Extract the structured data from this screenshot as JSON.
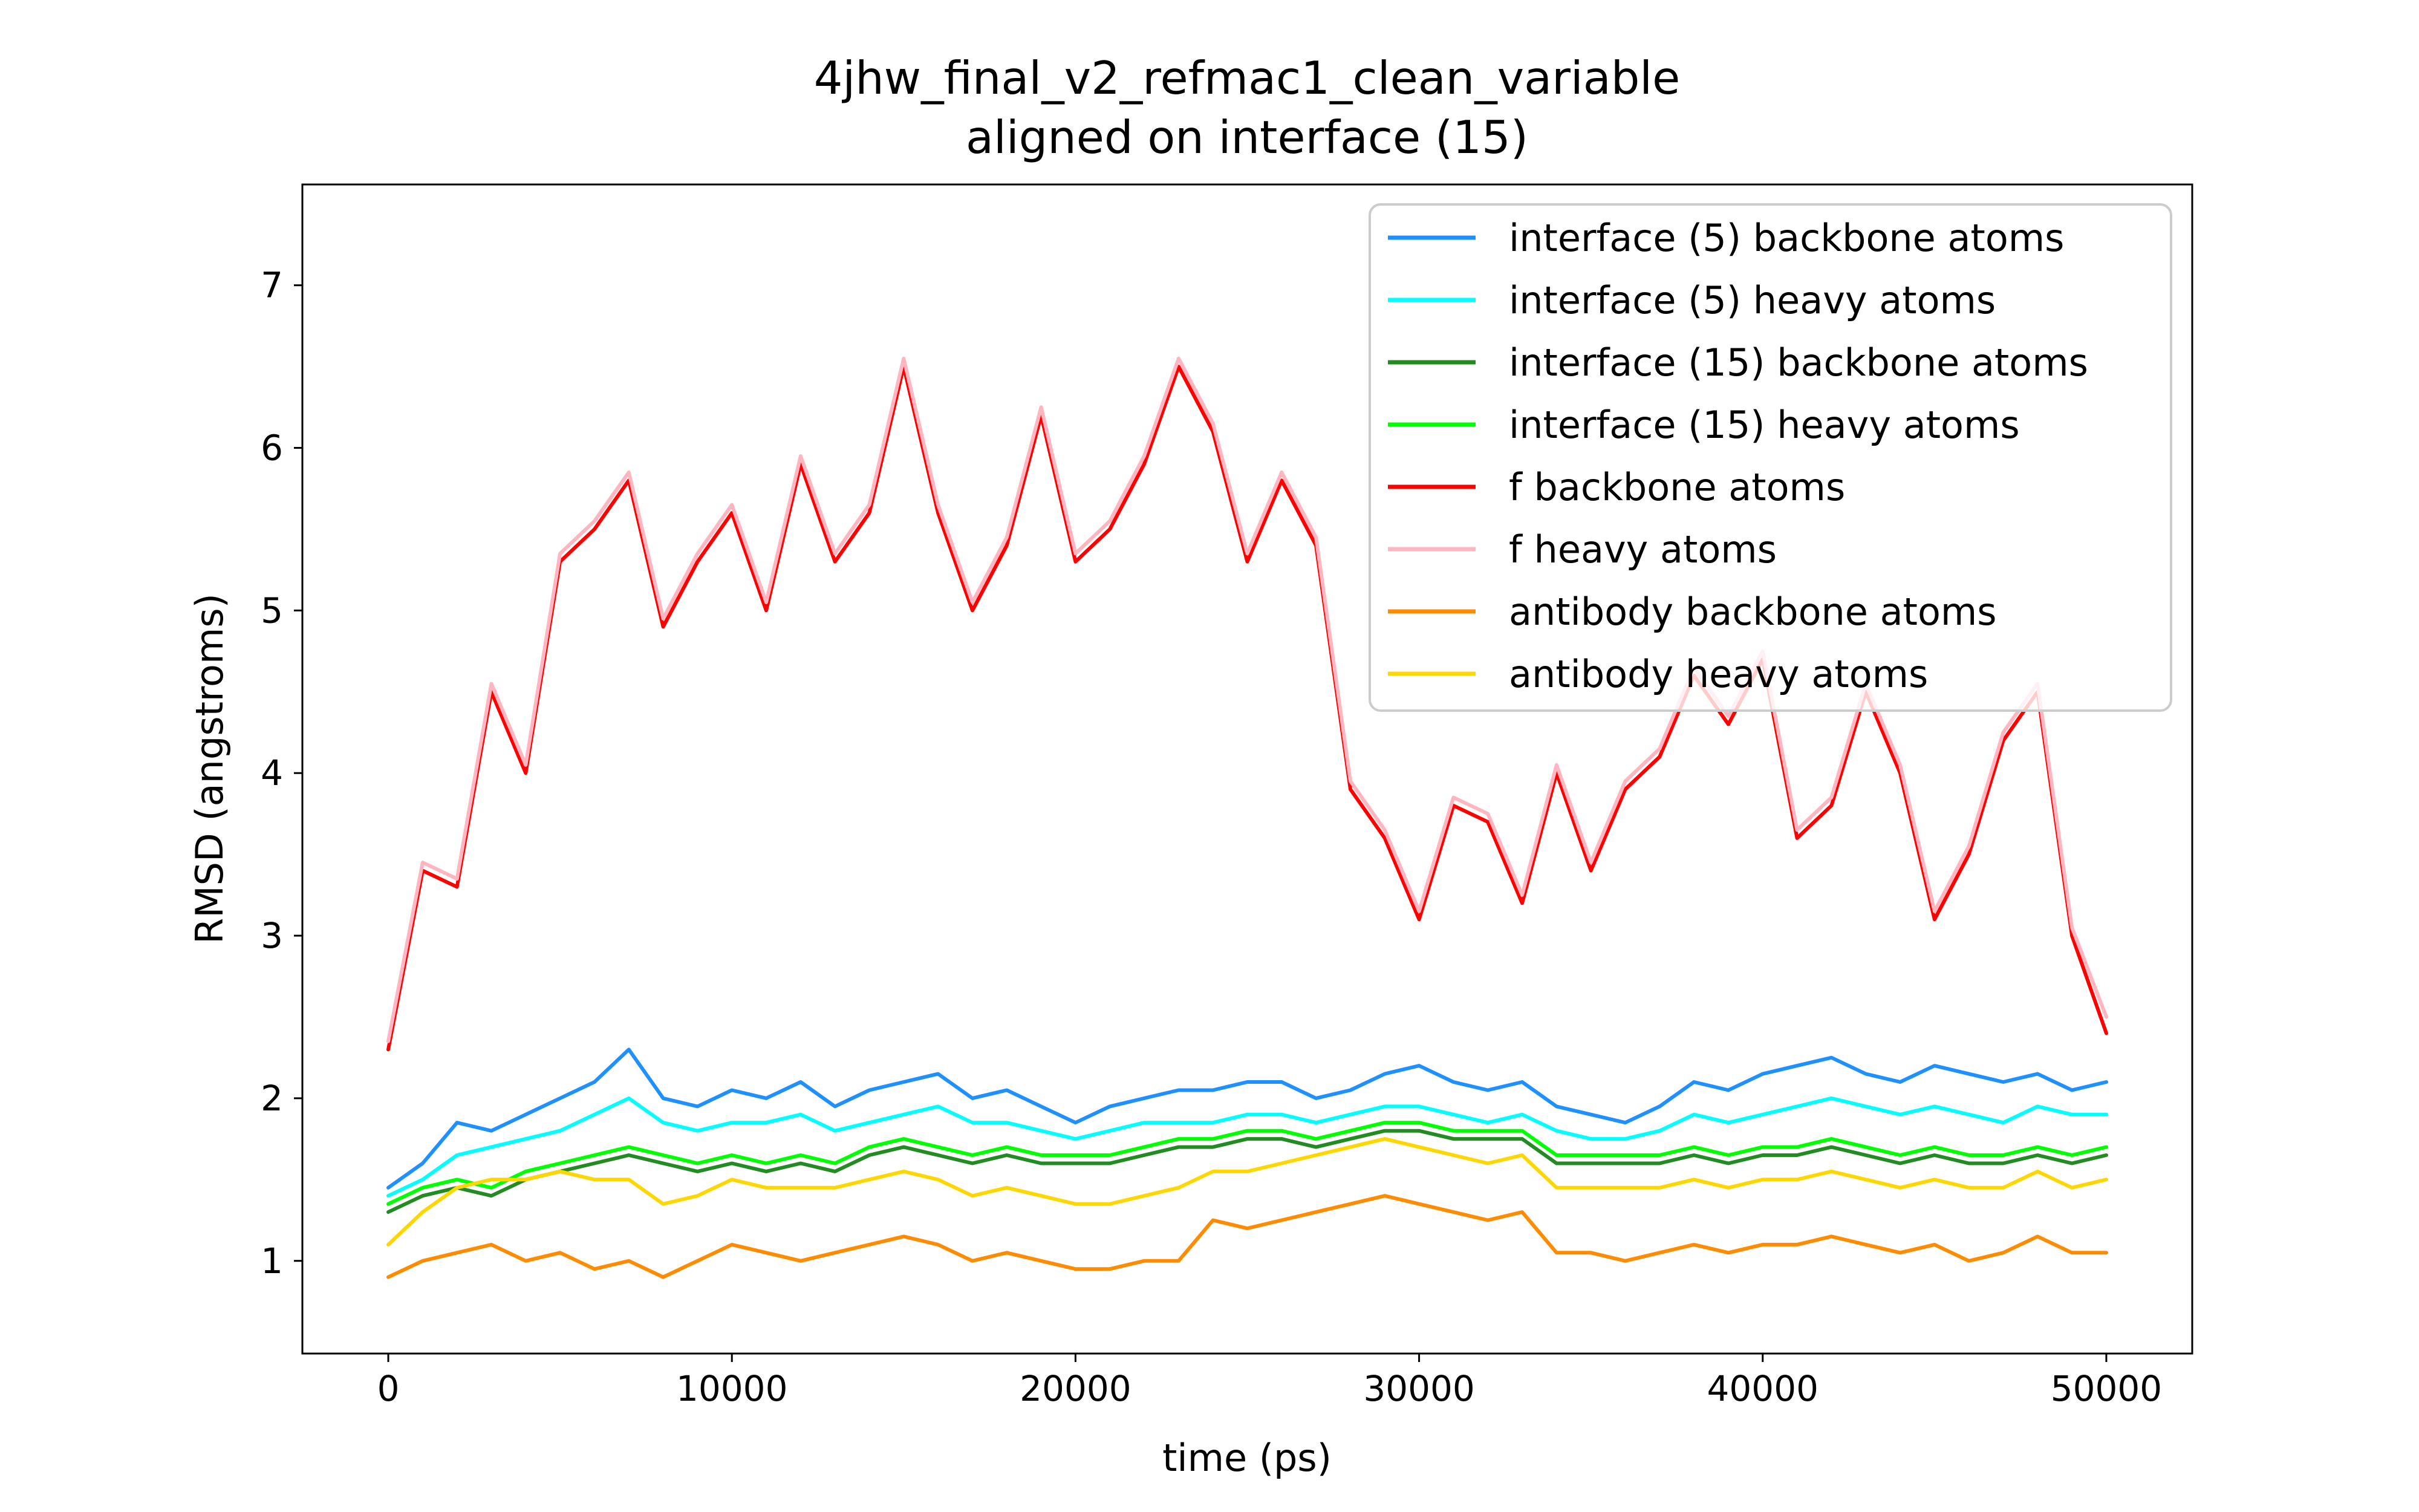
{
  "chart_data": {
    "type": "line",
    "title": "4jhw_final_v2_refmac1_clean_variable",
    "subtitle": "aligned on interface (15)",
    "xlabel": "time (ps)",
    "ylabel": "RMSD (angstroms)",
    "xlim": [
      -2500,
      52500
    ],
    "ylim": [
      0.43,
      7.62
    ],
    "xticks": [
      0,
      10000,
      20000,
      30000,
      40000,
      50000
    ],
    "xtick_labels": [
      "0",
      "10000",
      "20000",
      "30000",
      "40000",
      "50000"
    ],
    "yticks": [
      1,
      2,
      3,
      4,
      5,
      6,
      7
    ],
    "ytick_labels": [
      "1",
      "2",
      "3",
      "4",
      "5",
      "6",
      "7"
    ],
    "grid": false,
    "legend_position": "top-right",
    "series": [
      {
        "name": "interface (5) backbone atoms",
        "color": "#1e90ff",
        "x": [
          0,
          1000,
          2000,
          3000,
          4000,
          5000,
          6000,
          7000,
          8000,
          9000,
          10000,
          11000,
          12000,
          13000,
          14000,
          15000,
          16000,
          17000,
          18000,
          19000,
          20000,
          21000,
          22000,
          23000,
          24000,
          25000,
          26000,
          27000,
          28000,
          29000,
          30000,
          31000,
          32000,
          33000,
          34000,
          35000,
          36000,
          37000,
          38000,
          39000,
          40000,
          41000,
          42000,
          43000,
          44000,
          45000,
          46000,
          47000,
          48000,
          49000,
          50000
        ],
        "y": [
          1.45,
          1.6,
          1.85,
          1.8,
          1.9,
          2.0,
          2.1,
          2.3,
          2.0,
          1.95,
          2.05,
          2.0,
          2.1,
          1.95,
          2.05,
          2.1,
          2.15,
          2.0,
          2.05,
          1.95,
          1.85,
          1.95,
          2.0,
          2.05,
          2.05,
          2.1,
          2.1,
          2.0,
          2.05,
          2.15,
          2.2,
          2.1,
          2.05,
          2.1,
          1.95,
          1.9,
          1.85,
          1.95,
          2.1,
          2.05,
          2.15,
          2.2,
          2.25,
          2.15,
          2.1,
          2.2,
          2.15,
          2.1,
          2.15,
          2.05,
          2.1
        ]
      },
      {
        "name": "interface (5) heavy atoms",
        "color": "#00ffff",
        "x": [
          0,
          1000,
          2000,
          3000,
          4000,
          5000,
          6000,
          7000,
          8000,
          9000,
          10000,
          11000,
          12000,
          13000,
          14000,
          15000,
          16000,
          17000,
          18000,
          19000,
          20000,
          21000,
          22000,
          23000,
          24000,
          25000,
          26000,
          27000,
          28000,
          29000,
          30000,
          31000,
          32000,
          33000,
          34000,
          35000,
          36000,
          37000,
          38000,
          39000,
          40000,
          41000,
          42000,
          43000,
          44000,
          45000,
          46000,
          47000,
          48000,
          49000,
          50000
        ],
        "y": [
          1.4,
          1.5,
          1.65,
          1.7,
          1.75,
          1.8,
          1.9,
          2.0,
          1.85,
          1.8,
          1.85,
          1.85,
          1.9,
          1.8,
          1.85,
          1.9,
          1.95,
          1.85,
          1.85,
          1.8,
          1.75,
          1.8,
          1.85,
          1.85,
          1.85,
          1.9,
          1.9,
          1.85,
          1.9,
          1.95,
          1.95,
          1.9,
          1.85,
          1.9,
          1.8,
          1.75,
          1.75,
          1.8,
          1.9,
          1.85,
          1.9,
          1.95,
          2.0,
          1.95,
          1.9,
          1.95,
          1.9,
          1.85,
          1.95,
          1.9,
          1.9
        ]
      },
      {
        "name": "interface (15) backbone atoms",
        "color": "#228b22",
        "x": [
          0,
          1000,
          2000,
          3000,
          4000,
          5000,
          6000,
          7000,
          8000,
          9000,
          10000,
          11000,
          12000,
          13000,
          14000,
          15000,
          16000,
          17000,
          18000,
          19000,
          20000,
          21000,
          22000,
          23000,
          24000,
          25000,
          26000,
          27000,
          28000,
          29000,
          30000,
          31000,
          32000,
          33000,
          34000,
          35000,
          36000,
          37000,
          38000,
          39000,
          40000,
          41000,
          42000,
          43000,
          44000,
          45000,
          46000,
          47000,
          48000,
          49000,
          50000
        ],
        "y": [
          1.3,
          1.4,
          1.45,
          1.4,
          1.5,
          1.55,
          1.6,
          1.65,
          1.6,
          1.55,
          1.6,
          1.55,
          1.6,
          1.55,
          1.65,
          1.7,
          1.65,
          1.6,
          1.65,
          1.6,
          1.6,
          1.6,
          1.65,
          1.7,
          1.7,
          1.75,
          1.75,
          1.7,
          1.75,
          1.8,
          1.8,
          1.75,
          1.75,
          1.75,
          1.6,
          1.6,
          1.6,
          1.6,
          1.65,
          1.6,
          1.65,
          1.65,
          1.7,
          1.65,
          1.6,
          1.65,
          1.6,
          1.6,
          1.65,
          1.6,
          1.65
        ]
      },
      {
        "name": "interface (15) heavy atoms",
        "color": "#00ff00",
        "x": [
          0,
          1000,
          2000,
          3000,
          4000,
          5000,
          6000,
          7000,
          8000,
          9000,
          10000,
          11000,
          12000,
          13000,
          14000,
          15000,
          16000,
          17000,
          18000,
          19000,
          20000,
          21000,
          22000,
          23000,
          24000,
          25000,
          26000,
          27000,
          28000,
          29000,
          30000,
          31000,
          32000,
          33000,
          34000,
          35000,
          36000,
          37000,
          38000,
          39000,
          40000,
          41000,
          42000,
          43000,
          44000,
          45000,
          46000,
          47000,
          48000,
          49000,
          50000
        ],
        "y": [
          1.35,
          1.45,
          1.5,
          1.45,
          1.55,
          1.6,
          1.65,
          1.7,
          1.65,
          1.6,
          1.65,
          1.6,
          1.65,
          1.6,
          1.7,
          1.75,
          1.7,
          1.65,
          1.7,
          1.65,
          1.65,
          1.65,
          1.7,
          1.75,
          1.75,
          1.8,
          1.8,
          1.75,
          1.8,
          1.85,
          1.85,
          1.8,
          1.8,
          1.8,
          1.65,
          1.65,
          1.65,
          1.65,
          1.7,
          1.65,
          1.7,
          1.7,
          1.75,
          1.7,
          1.65,
          1.7,
          1.65,
          1.65,
          1.7,
          1.65,
          1.7
        ]
      },
      {
        "name": "f backbone atoms",
        "color": "#ff0000",
        "x": [
          0,
          1000,
          2000,
          3000,
          4000,
          5000,
          6000,
          7000,
          8000,
          9000,
          10000,
          11000,
          12000,
          13000,
          14000,
          15000,
          16000,
          17000,
          18000,
          19000,
          20000,
          21000,
          22000,
          23000,
          24000,
          25000,
          26000,
          27000,
          28000,
          29000,
          30000,
          31000,
          32000,
          33000,
          34000,
          35000,
          36000,
          37000,
          38000,
          39000,
          40000,
          41000,
          42000,
          43000,
          44000,
          45000,
          46000,
          47000,
          48000,
          49000,
          50000
        ],
        "y": [
          2.3,
          3.4,
          3.3,
          4.5,
          4.0,
          5.3,
          5.5,
          5.8,
          4.9,
          5.3,
          5.6,
          5.0,
          5.9,
          5.3,
          5.6,
          6.5,
          5.6,
          5.0,
          5.4,
          6.2,
          5.3,
          5.5,
          5.9,
          6.5,
          6.1,
          5.3,
          5.8,
          5.4,
          3.9,
          3.6,
          3.1,
          3.8,
          3.7,
          3.2,
          4.0,
          3.4,
          3.9,
          4.1,
          4.6,
          4.3,
          4.7,
          3.6,
          3.8,
          4.5,
          4.0,
          3.1,
          3.5,
          4.2,
          4.5,
          3.0,
          2.4
        ]
      },
      {
        "name": "f heavy atoms",
        "color": "#ffb6c1",
        "x": [
          0,
          1000,
          2000,
          3000,
          4000,
          5000,
          6000,
          7000,
          8000,
          9000,
          10000,
          11000,
          12000,
          13000,
          14000,
          15000,
          16000,
          17000,
          18000,
          19000,
          20000,
          21000,
          22000,
          23000,
          24000,
          25000,
          26000,
          27000,
          28000,
          29000,
          30000,
          31000,
          32000,
          33000,
          34000,
          35000,
          36000,
          37000,
          38000,
          39000,
          40000,
          41000,
          42000,
          43000,
          44000,
          45000,
          46000,
          47000,
          48000,
          49000,
          50000
        ],
        "y": [
          2.35,
          3.45,
          3.35,
          4.55,
          4.05,
          5.35,
          5.55,
          5.85,
          4.95,
          5.35,
          5.65,
          5.05,
          5.95,
          5.35,
          5.65,
          6.55,
          5.65,
          5.05,
          5.45,
          6.25,
          5.35,
          5.55,
          5.95,
          6.55,
          6.15,
          5.35,
          5.85,
          5.45,
          3.95,
          3.65,
          3.15,
          3.85,
          3.75,
          3.25,
          4.05,
          3.45,
          3.95,
          4.15,
          4.65,
          4.35,
          4.75,
          3.65,
          3.85,
          4.55,
          4.05,
          3.15,
          3.55,
          4.25,
          4.55,
          3.05,
          2.5
        ]
      },
      {
        "name": "antibody backbone atoms",
        "color": "#ff8c00",
        "x": [
          0,
          1000,
          2000,
          3000,
          4000,
          5000,
          6000,
          7000,
          8000,
          9000,
          10000,
          11000,
          12000,
          13000,
          14000,
          15000,
          16000,
          17000,
          18000,
          19000,
          20000,
          21000,
          22000,
          23000,
          24000,
          25000,
          26000,
          27000,
          28000,
          29000,
          30000,
          31000,
          32000,
          33000,
          34000,
          35000,
          36000,
          37000,
          38000,
          39000,
          40000,
          41000,
          42000,
          43000,
          44000,
          45000,
          46000,
          47000,
          48000,
          49000,
          50000
        ],
        "y": [
          0.9,
          1.0,
          1.05,
          1.1,
          1.0,
          1.05,
          0.95,
          1.0,
          0.9,
          1.0,
          1.1,
          1.05,
          1.0,
          1.05,
          1.1,
          1.15,
          1.1,
          1.0,
          1.05,
          1.0,
          0.95,
          0.95,
          1.0,
          1.0,
          1.25,
          1.2,
          1.25,
          1.3,
          1.35,
          1.4,
          1.35,
          1.3,
          1.25,
          1.3,
          1.05,
          1.05,
          1.0,
          1.05,
          1.1,
          1.05,
          1.1,
          1.1,
          1.15,
          1.1,
          1.05,
          1.1,
          1.0,
          1.05,
          1.15,
          1.05,
          1.05
        ]
      },
      {
        "name": "antibody heavy atoms",
        "color": "#ffd700",
        "x": [
          0,
          1000,
          2000,
          3000,
          4000,
          5000,
          6000,
          7000,
          8000,
          9000,
          10000,
          11000,
          12000,
          13000,
          14000,
          15000,
          16000,
          17000,
          18000,
          19000,
          20000,
          21000,
          22000,
          23000,
          24000,
          25000,
          26000,
          27000,
          28000,
          29000,
          30000,
          31000,
          32000,
          33000,
          34000,
          35000,
          36000,
          37000,
          38000,
          39000,
          40000,
          41000,
          42000,
          43000,
          44000,
          45000,
          46000,
          47000,
          48000,
          49000,
          50000
        ],
        "y": [
          1.1,
          1.3,
          1.45,
          1.5,
          1.5,
          1.55,
          1.5,
          1.5,
          1.35,
          1.4,
          1.5,
          1.45,
          1.45,
          1.45,
          1.5,
          1.55,
          1.5,
          1.4,
          1.45,
          1.4,
          1.35,
          1.35,
          1.4,
          1.45,
          1.55,
          1.55,
          1.6,
          1.65,
          1.7,
          1.75,
          1.7,
          1.65,
          1.6,
          1.65,
          1.45,
          1.45,
          1.45,
          1.45,
          1.5,
          1.45,
          1.5,
          1.5,
          1.55,
          1.5,
          1.45,
          1.5,
          1.45,
          1.45,
          1.55,
          1.45,
          1.5
        ]
      }
    ]
  }
}
